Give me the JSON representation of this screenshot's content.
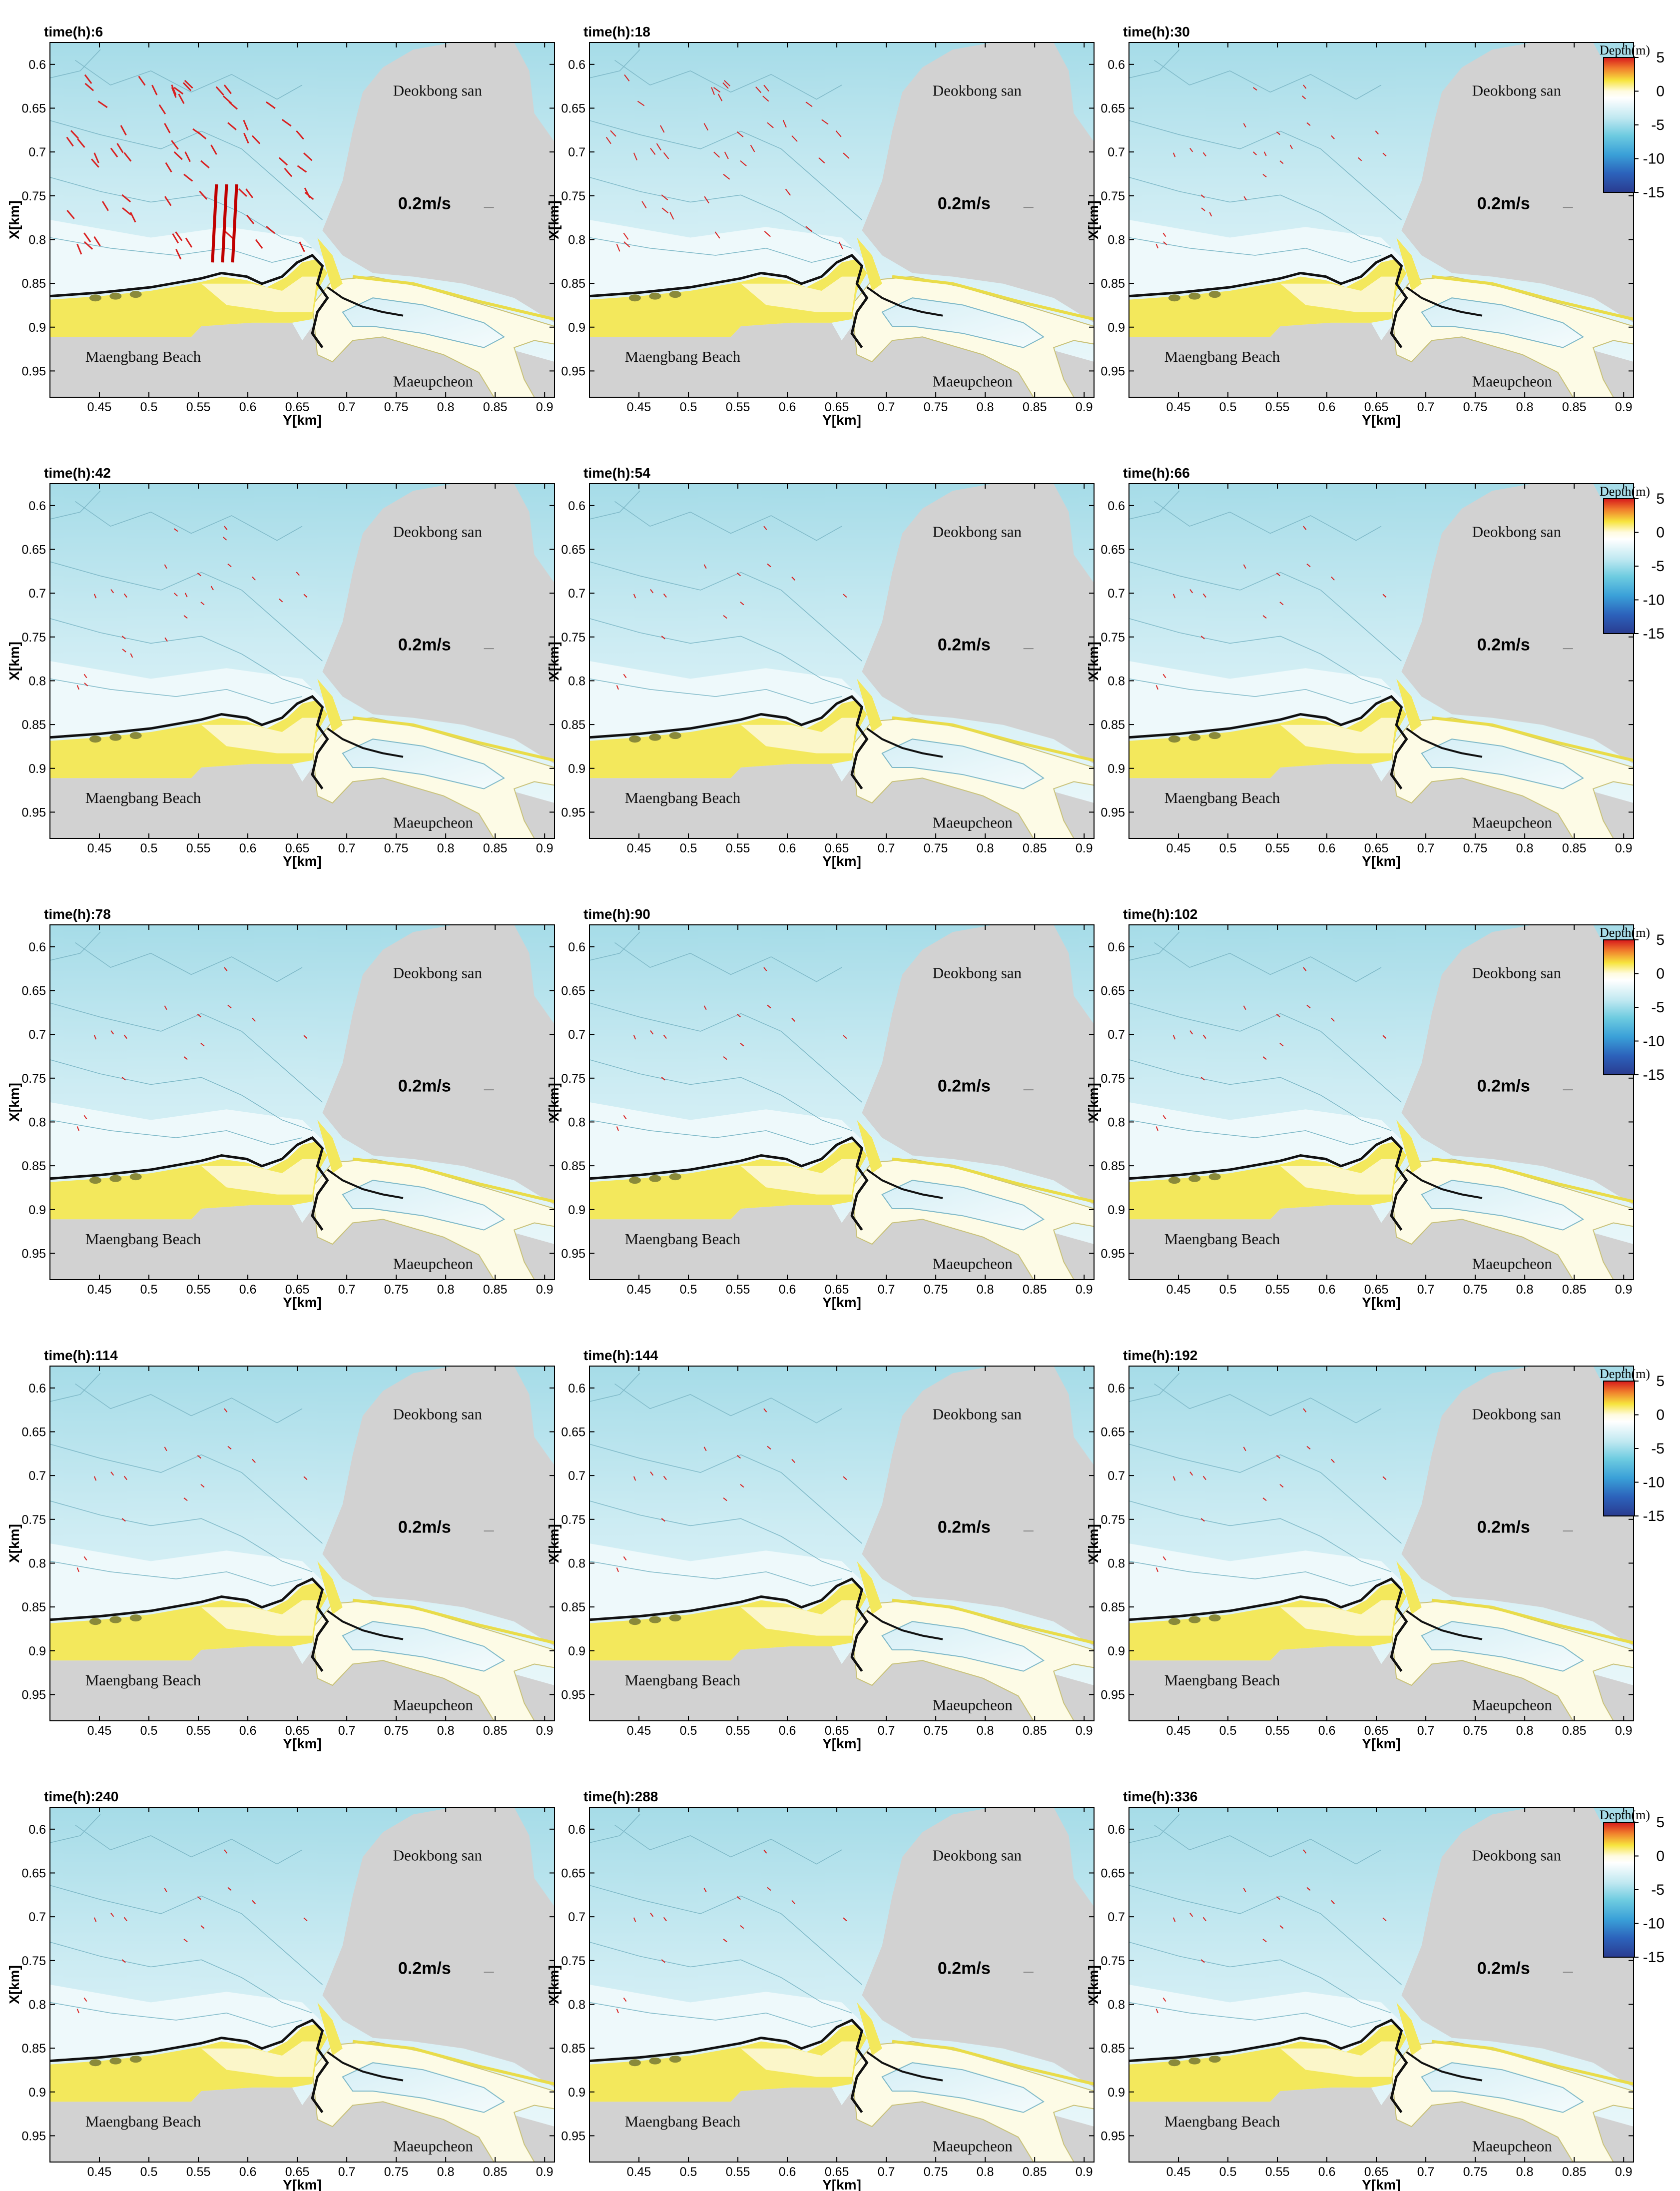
{
  "chart_data": {
    "type": "contour",
    "description_of_layout": "5 rows x 3 columns of small multiples",
    "panel_title_prefix": "time(h):",
    "panels": [
      {
        "time_h": "6",
        "title": "time(h):6",
        "vectors": "strong"
      },
      {
        "time_h": "18",
        "title": "time(h):18",
        "vectors": "medium"
      },
      {
        "time_h": "30",
        "title": "time(h):30",
        "vectors": "weak"
      },
      {
        "time_h": "42",
        "title": "time(h):42",
        "vectors": "weak"
      },
      {
        "time_h": "54",
        "title": "time(h):54",
        "vectors": "faint"
      },
      {
        "time_h": "66",
        "title": "time(h):66",
        "vectors": "faint"
      },
      {
        "time_h": "78",
        "title": "time(h):78",
        "vectors": "faint"
      },
      {
        "time_h": "90",
        "title": "time(h):90",
        "vectors": "faint"
      },
      {
        "time_h": "102",
        "title": "time(h):102",
        "vectors": "faint"
      },
      {
        "time_h": "114",
        "title": "time(h):114",
        "vectors": "faint"
      },
      {
        "time_h": "144",
        "title": "time(h):144",
        "vectors": "faint"
      },
      {
        "time_h": "192",
        "title": "time(h):192",
        "vectors": "faint"
      },
      {
        "time_h": "240",
        "title": "time(h):240",
        "vectors": "faint"
      },
      {
        "time_h": "288",
        "title": "time(h):288",
        "vectors": "faint"
      },
      {
        "time_h": "336",
        "title": "time(h):336",
        "vectors": "faint"
      }
    ],
    "xlabel": "Y[km]",
    "ylabel": "X[km]",
    "x_ticks": [
      "0.45",
      "0.5",
      "0.55",
      "0.6",
      "0.65",
      "0.7",
      "0.75",
      "0.8",
      "0.85",
      "0.9"
    ],
    "x_tick_values": [
      0.45,
      0.5,
      0.55,
      0.6,
      0.65,
      0.7,
      0.75,
      0.8,
      0.85,
      0.9
    ],
    "xlim": [
      0.4,
      0.91
    ],
    "y_ticks": [
      "0.6",
      "0.65",
      "0.7",
      "0.75",
      "0.8",
      "0.85",
      "0.9",
      "0.95"
    ],
    "y_tick_values": [
      0.6,
      0.65,
      0.7,
      0.75,
      0.8,
      0.85,
      0.9,
      0.95
    ],
    "ylim": [
      0.575,
      0.98
    ],
    "y_inverted": true,
    "labels": {
      "deokbong": "Deokbong san",
      "beach": "Maengbang Beach",
      "stream": "Maeupcheon",
      "scale": "0.2m/s"
    },
    "colorbar": {
      "title": "Depth(m)",
      "ticks": [
        "5",
        "0",
        "-5",
        "-10",
        "-15"
      ],
      "tick_values": [
        5,
        0,
        -5,
        -10,
        -15
      ],
      "range": [
        -15,
        5
      ],
      "colors": [
        "#d7191c",
        "#f4a93a",
        "#f7ee3e",
        "#fbf8c6",
        "#ffffff",
        "#cfeef4",
        "#6dcbe0",
        "#3a9fd6",
        "#2c5fb8",
        "#2a3f95"
      ]
    },
    "colors": {
      "land": "#d2d2d2",
      "sea": "#d9f1f6",
      "sea_deep": "#a6dce8",
      "beach": "#f3e85c",
      "beach_light": "#fbf6c9",
      "vectors": "#d92020",
      "shoreline": "#111111"
    }
  }
}
